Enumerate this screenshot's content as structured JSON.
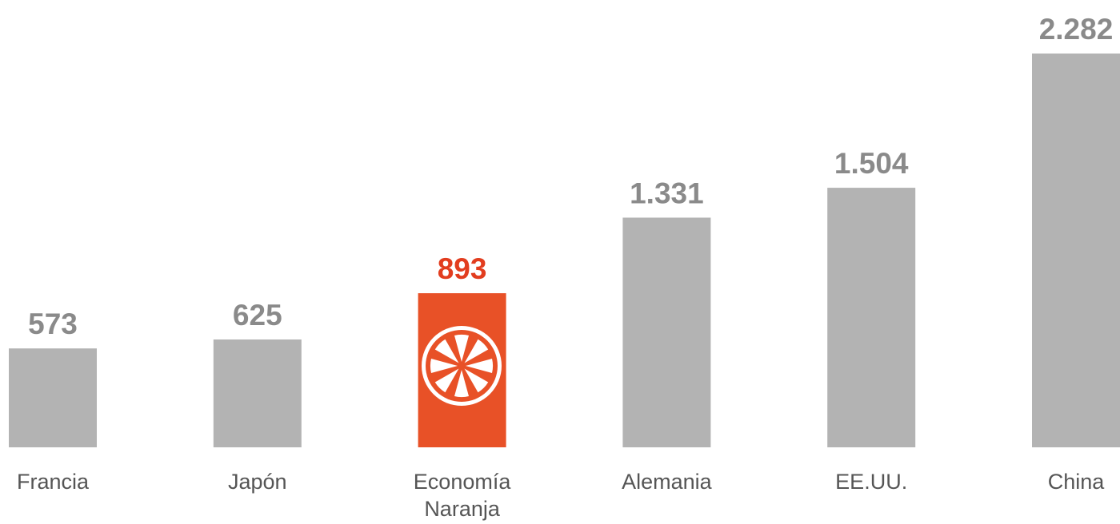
{
  "chart_data": {
    "type": "bar",
    "categories": [
      "Francia",
      "Japón",
      "Economía Naranja",
      "Alemania",
      "EE.UU.",
      "China"
    ],
    "values": [
      573,
      625,
      893,
      1331,
      1504,
      2282
    ],
    "value_labels": [
      "573",
      "625",
      "893",
      "1.331",
      "1.504",
      "2.282"
    ],
    "colors": [
      "#b3b3b3",
      "#b3b3b3",
      "#e85127",
      "#b3b3b3",
      "#b3b3b3",
      "#b3b3b3"
    ],
    "value_label_colors": [
      "#8a8a8a",
      "#8a8a8a",
      "#e23d1f",
      "#8a8a8a",
      "#8a8a8a",
      "#8a8a8a"
    ]
  }
}
